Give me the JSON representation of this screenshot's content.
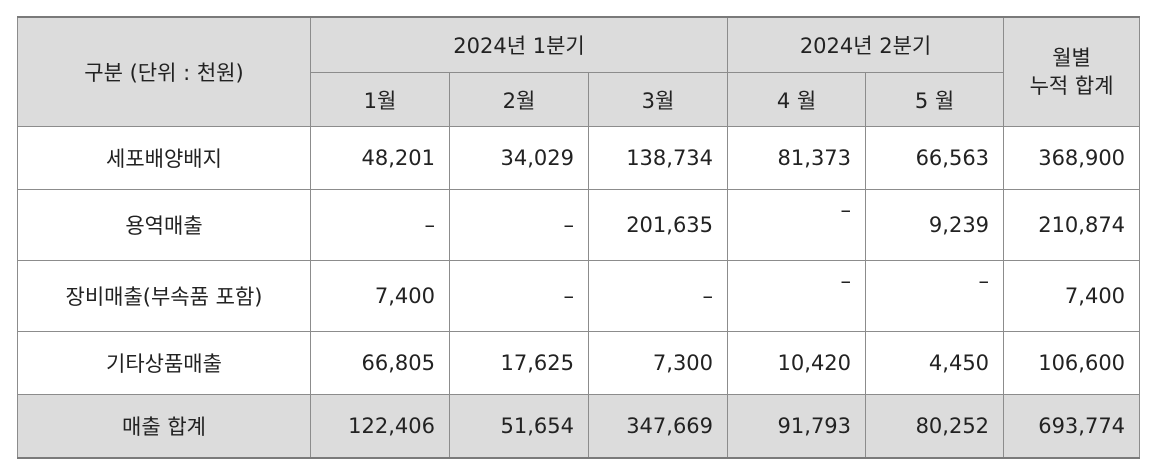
{
  "header": {
    "category": "구분 (단위 : 천원)",
    "q1": "2024년 1분기",
    "q2": "2024년 2분기",
    "cumulative_line1": "월별",
    "cumulative_line2": "누적 합계",
    "months": [
      "1월",
      "2월",
      "3월",
      "4 월",
      "5 월"
    ]
  },
  "rows": [
    {
      "label": "세포배양배지",
      "values": [
        "48,201",
        "34,029",
        "138,734",
        "81,373",
        "66,563"
      ],
      "total": "368,900"
    },
    {
      "label": "용역매출",
      "values": [
        "–",
        "–",
        "201,635",
        "–",
        "9,239"
      ],
      "total": "210,874"
    },
    {
      "label": "장비매출(부속품 포함)",
      "values": [
        "7,400",
        "–",
        "–",
        "–",
        "–"
      ],
      "total": "7,400"
    },
    {
      "label": "기타상품매출",
      "values": [
        "66,805",
        "17,625",
        "7,300",
        "10,420",
        "4,450"
      ],
      "total": "106,600"
    }
  ],
  "total_row": {
    "label": "매출 합계",
    "values": [
      "122,406",
      "51,654",
      "347,669",
      "91,793",
      "80,252"
    ],
    "total": "693,774"
  }
}
